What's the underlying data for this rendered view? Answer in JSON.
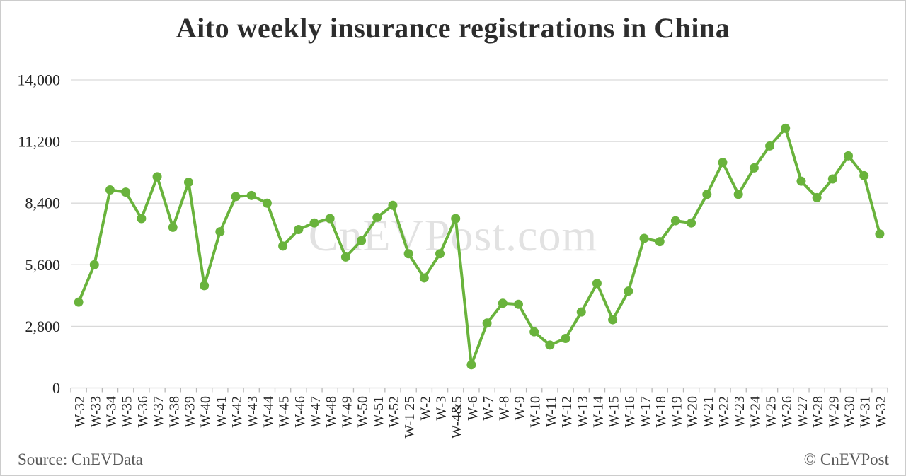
{
  "header": {
    "title": "Aito weekly insurance registrations in China"
  },
  "watermark": "CnEVPost.com",
  "footer": {
    "source": "Source: CnEVData",
    "copyright": "© CnEVPost"
  },
  "colors": {
    "line": "#69b33c",
    "marker": "#69b33c",
    "gridline": "#d9d9d9",
    "axis_line": "#b8b8b8",
    "tick": "#b8b8b8",
    "tick_label": "#262626",
    "title": "#2d2d2d",
    "watermark": "#e2e2e2",
    "footer_text": "#595959",
    "border": "#cccccc",
    "background": "#ffffff"
  },
  "chart_data": {
    "type": "line",
    "title": "Aito weekly insurance registrations in China",
    "series_name": "Aito weekly insurance registrations",
    "categories": [
      "W-32",
      "W-33",
      "W-34",
      "W-35",
      "W-36",
      "W-37",
      "W-38",
      "W-39",
      "W-40",
      "W-41",
      "W-42",
      "W-43",
      "W-44",
      "W-45",
      "W-46",
      "W-47",
      "W-48",
      "W-49",
      "W-50",
      "W-51",
      "W-52",
      "W-1 25",
      "W-2",
      "W-3",
      "W-4&5",
      "W-6",
      "W-7",
      "W-8",
      "W-9",
      "W-10",
      "W-11",
      "W-12",
      "W-13",
      "W-14",
      "W-15",
      "W-16",
      "W-17",
      "W-18",
      "W-19",
      "W-20",
      "W-21",
      "W-22",
      "W-23",
      "W-24",
      "W-25",
      "W-26",
      "W-27",
      "W-28",
      "W-29",
      "W-30",
      "W-31",
      "W-32"
    ],
    "values": [
      3900,
      5600,
      9000,
      8900,
      7700,
      9600,
      7300,
      9350,
      4650,
      7100,
      8700,
      8750,
      8400,
      6450,
      7200,
      7500,
      7700,
      5950,
      6700,
      7750,
      8300,
      6100,
      5000,
      6100,
      7700,
      1050,
      2950,
      3850,
      3800,
      2550,
      1950,
      2250,
      3450,
      4750,
      3100,
      4400,
      6800,
      6650,
      7600,
      7500,
      8800,
      10250,
      8800,
      10000,
      11000,
      11800,
      9400,
      8650,
      9500,
      10550,
      9650,
      7000
    ],
    "xlabel": "",
    "ylabel": "",
    "ylim": [
      0,
      14000
    ],
    "yticks": [
      0,
      2800,
      5600,
      8400,
      11200,
      14000
    ],
    "grid": "horizontal",
    "legend_position": "none",
    "marker": "circle"
  }
}
